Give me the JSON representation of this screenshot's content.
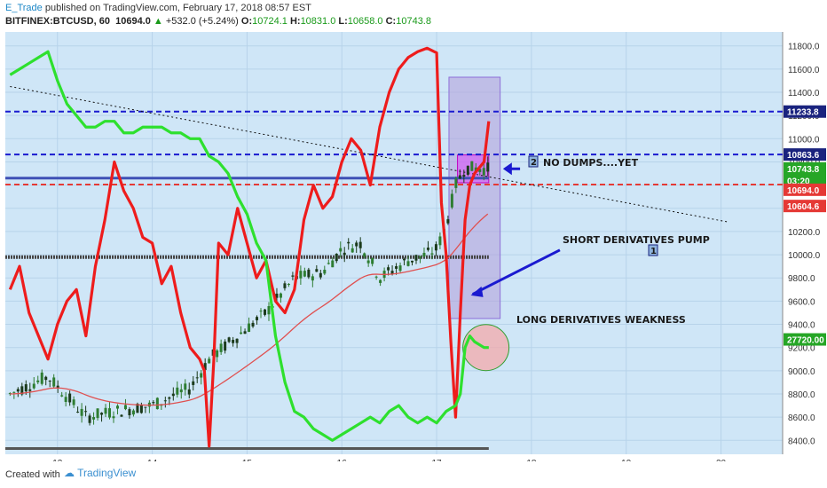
{
  "header": {
    "author": "E_Trade",
    "published": " published on TradingView.com, February 17, 2018 08:57 EST",
    "symbol": "BITFINEX:BTCUSD, 60",
    "last": "10694.0",
    "arrow": "▲",
    "change": "+532.0 (+5.24%)",
    "o_label": "O:",
    "o_value": "10724.1",
    "h_label": "H:",
    "h_value": "10831.0",
    "l_label": "L:",
    "l_value": "10658.0",
    "c_label": "C:",
    "c_value": "10743.8"
  },
  "footer": {
    "created": "Created with",
    "brand": "TradingView"
  },
  "annotations": {
    "no_dumps": "NO DUMPS....YET",
    "short_pump": "SHORT DERIVATIVES PUMP",
    "long_weak": "LONG DERIVATIVES WEAKNESS",
    "box2": "2",
    "box1": "1"
  },
  "price_tags": [
    {
      "text": "11233.8",
      "price": 11233.8,
      "color": "#1a237e"
    },
    {
      "text": "10863.6",
      "price": 10863.6,
      "color": "#1a237e"
    },
    {
      "text": "10743.8",
      "price": 10743.8,
      "color": "#26a626"
    },
    {
      "text": "03:20",
      "price": 10640,
      "color": "#26a626"
    },
    {
      "text": "10694.0",
      "price": 10560,
      "color": "#e53935"
    },
    {
      "text": "10604.6",
      "price": 10420,
      "color": "#e53935"
    },
    {
      "text": "27720.00",
      "price": 9270,
      "color": "#26a626"
    }
  ],
  "colors": {
    "plot_bg": "#cfe6f7",
    "red_line": "#ee1c1c",
    "green_line": "#2ee02e",
    "blue_dash": "#1a1ad0",
    "red_dash": "#e53935",
    "ma_line": "#e05050",
    "up_candle": "#2e7d32",
    "down_candle": "#1b3a1b"
  },
  "chart_data": {
    "type": "line",
    "title": "",
    "xlabel": "",
    "ylabel": "",
    "x_ticks": [
      "13",
      "14",
      "15",
      "16",
      "17",
      "18",
      "19",
      "20"
    ],
    "y_ticks": [
      "8400.0",
      "8600.0",
      "8800.0",
      "9000.0",
      "9200.0",
      "9400.0",
      "9600.0",
      "9800.0",
      "10000.0",
      "10200.0",
      "10400.0",
      "10600.0",
      "10800.0",
      "11000.0",
      "11200.0",
      "11400.0",
      "11600.0",
      "11800.0"
    ],
    "ylim": [
      8280,
      11920
    ],
    "xlim": [
      12.45,
      20.65
    ],
    "series": [
      {
        "name": "",
        "x": [
          12.5,
          12.6,
          12.7,
          12.8,
          12.9,
          13.0,
          13.1,
          13.2,
          13.3,
          13.4,
          13.5,
          13.6,
          13.7,
          13.8,
          13.9,
          14.0,
          14.1,
          14.2,
          14.3,
          14.4,
          14.5,
          14.55,
          14.6,
          14.65,
          14.7,
          14.8,
          14.9,
          15.0,
          15.1,
          15.2,
          15.3,
          15.4,
          15.5,
          15.6,
          15.7,
          15.8,
          15.9,
          16.0,
          16.1,
          16.2,
          16.3,
          16.4,
          16.5,
          16.6,
          16.7,
          16.8,
          16.9,
          17.0,
          17.05,
          17.1,
          17.15,
          17.2,
          17.25,
          17.3,
          17.35,
          17.4,
          17.5,
          17.55
        ],
        "y": [
          9700,
          9900,
          9500,
          9300,
          9100,
          9400,
          9600,
          9700,
          9300,
          9900,
          10300,
          10800,
          10550,
          10400,
          10150,
          10100,
          9750,
          9900,
          9500,
          9200,
          9100,
          9000,
          8350,
          9100,
          10100,
          10000,
          10400,
          10100,
          9800,
          9950,
          9600,
          9500,
          9700,
          10300,
          10600,
          10400,
          10500,
          10800,
          11000,
          10900,
          10600,
          11100,
          11400,
          11600,
          11700,
          11750,
          11780,
          11740,
          10450,
          10000,
          9250,
          8600,
          9500,
          10300,
          10600,
          10700,
          10800,
          11150
        ],
        "color": "#ee1c1c"
      },
      {
        "name": "",
        "x": [
          12.5,
          12.6,
          12.7,
          12.8,
          12.9,
          13.0,
          13.1,
          13.2,
          13.3,
          13.4,
          13.5,
          13.6,
          13.7,
          13.8,
          13.9,
          14.0,
          14.1,
          14.2,
          14.3,
          14.4,
          14.5,
          14.6,
          14.7,
          14.8,
          14.9,
          15.0,
          15.1,
          15.2,
          15.3,
          15.4,
          15.5,
          15.6,
          15.7,
          15.8,
          15.9,
          16.0,
          16.1,
          16.2,
          16.3,
          16.4,
          16.5,
          16.6,
          16.7,
          16.8,
          16.9,
          17.0,
          17.1,
          17.2,
          17.25,
          17.3,
          17.35,
          17.4,
          17.5,
          17.55
        ],
        "y": [
          11550,
          11600,
          11650,
          11700,
          11750,
          11500,
          11300,
          11200,
          11100,
          11100,
          11150,
          11150,
          11050,
          11050,
          11100,
          11100,
          11100,
          11050,
          11050,
          11000,
          11000,
          10850,
          10800,
          10700,
          10500,
          10350,
          10100,
          9950,
          9300,
          8900,
          8650,
          8600,
          8500,
          8450,
          8400,
          8450,
          8500,
          8550,
          8600,
          8550,
          8650,
          8700,
          8600,
          8550,
          8600,
          8550,
          8650,
          8700,
          8800,
          9200,
          9300,
          9250,
          9200,
          9200
        ],
        "color": "#2ee02e"
      }
    ]
  }
}
